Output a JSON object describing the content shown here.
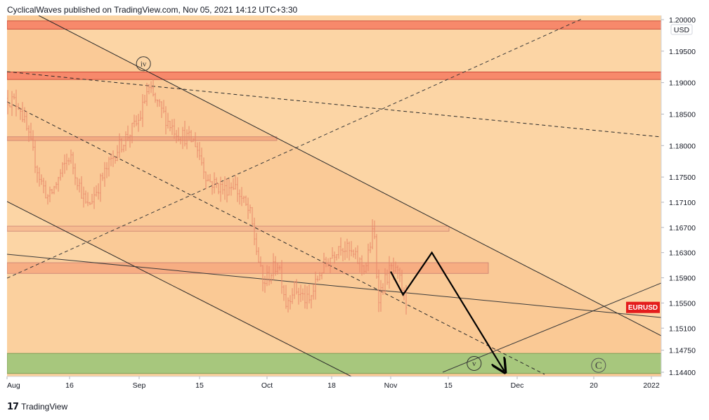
{
  "header": {
    "publisher": "CyclicalWaves published on TradingView.com, Nov 05, 2021 14:12 UTC+3:30"
  },
  "footer": {
    "logo_icon": "tradingview-logo-icon",
    "brand": "TradingView"
  },
  "colors": {
    "background": "#fcd5a5",
    "resistance_zone": "#f7896b",
    "support_zone": "#a3c77c",
    "candle": "#e8886a",
    "symbol_badge": "#e41c1c",
    "channel_line": "#2a2a2a"
  },
  "chart_data": {
    "type": "candlestick",
    "symbol": "EURUSD",
    "currency_label": "USD",
    "ylim": [
      1.1427,
      1.2012
    ],
    "y_ticks": [
      {
        "value": 1.2,
        "label": "1.20000"
      },
      {
        "value": 1.195,
        "label": "1.19500"
      },
      {
        "value": 1.19,
        "label": "1.19000"
      },
      {
        "value": 1.185,
        "label": "1.18500"
      },
      {
        "value": 1.18,
        "label": "1.18000"
      },
      {
        "value": 1.175,
        "label": "1.17500"
      },
      {
        "value": 1.171,
        "label": "1.17100"
      },
      {
        "value": 1.167,
        "label": "1.16700"
      },
      {
        "value": 1.163,
        "label": "1.16300"
      },
      {
        "value": 1.159,
        "label": "1.15900"
      },
      {
        "value": 1.155,
        "label": "1.15500"
      },
      {
        "value": 1.151,
        "label": "1.15100"
      },
      {
        "value": 1.1475,
        "label": "1.14750"
      },
      {
        "value": 1.144,
        "label": "1.14400"
      }
    ],
    "x_ticks": [
      {
        "date": "2021-08-01",
        "label": "Aug"
      },
      {
        "date": "2021-08-16",
        "label": "16"
      },
      {
        "date": "2021-09-01",
        "label": "Sep"
      },
      {
        "date": "2021-09-15",
        "label": "15"
      },
      {
        "date": "2021-10-01",
        "label": "Oct"
      },
      {
        "date": "2021-10-18",
        "label": "18"
      },
      {
        "date": "2021-11-01",
        "label": "Nov"
      },
      {
        "date": "2021-11-15",
        "label": "15"
      },
      {
        "date": "2021-12-01",
        "label": "Dec"
      },
      {
        "date": "2021-12-20",
        "label": "20"
      },
      {
        "date": "2022-01-01",
        "label": "2022"
      }
    ],
    "last_price": 1.1543,
    "price_path_close": [
      [
        "2021-07-30",
        1.1875
      ],
      [
        "2021-08-04",
        1.1865
      ],
      [
        "2021-08-09",
        1.1745
      ],
      [
        "2021-08-11",
        1.1715
      ],
      [
        "2021-08-16",
        1.1785
      ],
      [
        "2021-08-20",
        1.17
      ],
      [
        "2021-08-24",
        1.1755
      ],
      [
        "2021-08-27",
        1.1795
      ],
      [
        "2021-09-01",
        1.184
      ],
      [
        "2021-09-03",
        1.189
      ],
      [
        "2021-09-08",
        1.1835
      ],
      [
        "2021-09-10",
        1.182
      ],
      [
        "2021-09-14",
        1.1805
      ],
      [
        "2021-09-17",
        1.1745
      ],
      [
        "2021-09-21",
        1.173
      ],
      [
        "2021-09-23",
        1.174
      ],
      [
        "2021-09-27",
        1.169
      ],
      [
        "2021-09-30",
        1.158
      ],
      [
        "2021-10-04",
        1.1615
      ],
      [
        "2021-10-06",
        1.155
      ],
      [
        "2021-10-08",
        1.1575
      ],
      [
        "2021-10-12",
        1.155
      ],
      [
        "2021-10-15",
        1.16
      ],
      [
        "2021-10-20",
        1.1645
      ],
      [
        "2021-10-26",
        1.1605
      ],
      [
        "2021-10-28",
        1.167
      ],
      [
        "2021-10-29",
        1.156
      ],
      [
        "2021-11-01",
        1.1605
      ],
      [
        "2021-11-03",
        1.159
      ],
      [
        "2021-11-05",
        1.1543
      ]
    ],
    "horizontal_zones": [
      {
        "name": "resistance-zone-1.1997",
        "from": 1.1985,
        "to": 1.1998
      },
      {
        "name": "resistance-zone-1.1910",
        "from": 1.1905,
        "to": 1.1917
      },
      {
        "name": "zone-1.1810",
        "from": 1.1808,
        "to": 1.1814
      },
      {
        "name": "zone-1.1670",
        "from": 1.1664,
        "to": 1.1672
      },
      {
        "name": "zone-1.1610",
        "from": 1.1597,
        "to": 1.1614
      },
      {
        "name": "support-zone-1.1455",
        "from": 1.1438,
        "to": 1.147
      }
    ],
    "wave_labels": [
      {
        "label": "iv",
        "date": "2021-09-02",
        "price": 1.193
      },
      {
        "label": "v",
        "date": "2021-11-21",
        "price": 1.1454
      },
      {
        "label": "C",
        "date": "2021-12-21",
        "price": 1.1451
      }
    ],
    "projected_path": [
      [
        "2021-11-01",
        1.16
      ],
      [
        "2021-11-04",
        1.1563
      ],
      [
        "2021-11-11",
        1.163
      ],
      [
        "2021-11-28",
        1.1442
      ]
    ]
  }
}
